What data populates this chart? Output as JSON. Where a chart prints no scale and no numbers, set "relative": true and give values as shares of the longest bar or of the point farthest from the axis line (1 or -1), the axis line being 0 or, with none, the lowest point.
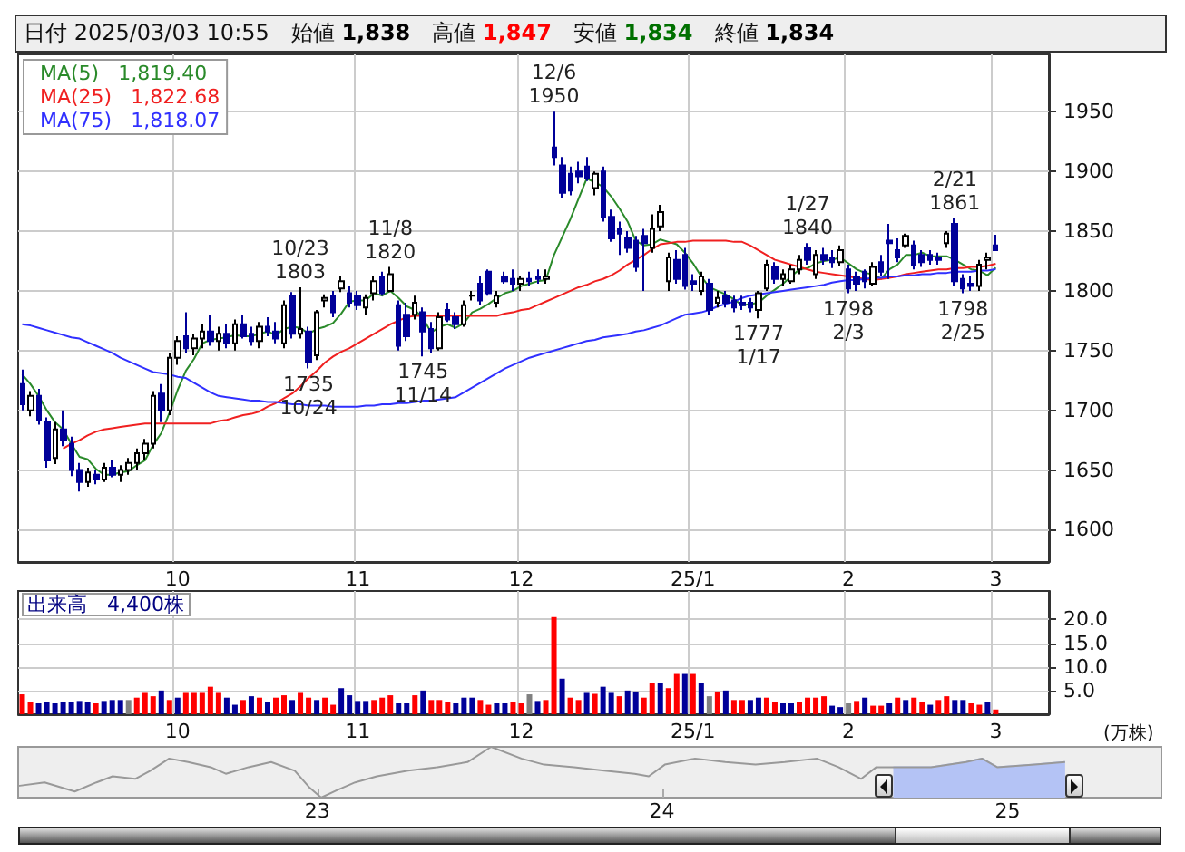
{
  "chart_data": [
    {
      "type": "candlestick",
      "title": "日付 2025/03/03 10:55",
      "annotations": [
        "始値 1,838",
        "高値 1,847",
        "安値 1,834",
        "終値 1,834",
        {
          "text": "10/23\n1803",
          "y": 1803
        },
        {
          "text": "1735\n10/24",
          "y": 1735
        },
        {
          "text": "11/8\n1820",
          "y": 1820
        },
        {
          "text": "1745\n11/14",
          "y": 1745
        },
        {
          "text": "12/6\n1950",
          "y": 1950
        },
        {
          "text": "1777\n1/17",
          "y": 1777
        },
        {
          "text": "1/27\n1840",
          "y": 1840
        },
        {
          "text": "1798\n2/3",
          "y": 1798
        },
        {
          "text": "2/21\n1861",
          "y": 1861
        },
        {
          "text": "1798\n2/25",
          "y": 1798
        }
      ],
      "categories": [
        null,
        null,
        null,
        null,
        null,
        null,
        null,
        null,
        null,
        null,
        null,
        null,
        null,
        null,
        null,
        null,
        null,
        null,
        null,
        "10",
        null,
        null,
        null,
        null,
        null,
        null,
        null,
        null,
        null,
        null,
        null,
        null,
        null,
        null,
        null,
        null,
        null,
        null,
        null,
        null,
        null,
        "11",
        null,
        null,
        null,
        null,
        null,
        null,
        null,
        null,
        null,
        null,
        null,
        null,
        null,
        null,
        null,
        null,
        null,
        null,
        null,
        "12",
        null,
        null,
        null,
        null,
        null,
        null,
        null,
        null,
        null,
        null,
        null,
        null,
        null,
        null,
        null,
        null,
        null,
        null,
        null,
        null,
        "25/1",
        null,
        null,
        null,
        null,
        null,
        null,
        null,
        null,
        null,
        null,
        null,
        null,
        null,
        null,
        null,
        null,
        null,
        null,
        "2",
        null,
        null,
        null,
        null,
        null,
        null,
        null,
        null,
        null,
        null,
        null,
        null,
        null,
        null,
        null,
        null,
        null,
        "3"
      ],
      "ohlc": [
        [
          1722,
          1734,
          1700,
          1705
        ],
        [
          1700,
          1716,
          1695,
          1712
        ],
        [
          1712,
          1718,
          1688,
          1692
        ],
        [
          1690,
          1694,
          1652,
          1658
        ],
        [
          1660,
          1690,
          1655,
          1684
        ],
        [
          1684,
          1700,
          1670,
          1675
        ],
        [
          1672,
          1678,
          1645,
          1650
        ],
        [
          1650,
          1656,
          1632,
          1640
        ],
        [
          1640,
          1652,
          1636,
          1648
        ],
        [
          1646,
          1650,
          1638,
          1642
        ],
        [
          1642,
          1656,
          1640,
          1652
        ],
        [
          1652,
          1658,
          1644,
          1646
        ],
        [
          1646,
          1654,
          1640,
          1650
        ],
        [
          1650,
          1660,
          1646,
          1656
        ],
        [
          1656,
          1668,
          1650,
          1664
        ],
        [
          1664,
          1676,
          1658,
          1672
        ],
        [
          1672,
          1716,
          1668,
          1712
        ],
        [
          1714,
          1722,
          1690,
          1700
        ],
        [
          1700,
          1748,
          1696,
          1744
        ],
        [
          1744,
          1762,
          1738,
          1758
        ],
        [
          1762,
          1782,
          1748,
          1752
        ],
        [
          1752,
          1764,
          1746,
          1760
        ],
        [
          1760,
          1772,
          1752,
          1766
        ],
        [
          1766,
          1780,
          1754,
          1758
        ],
        [
          1758,
          1770,
          1750,
          1764
        ],
        [
          1764,
          1772,
          1752,
          1756
        ],
        [
          1756,
          1776,
          1750,
          1772
        ],
        [
          1772,
          1780,
          1760,
          1762
        ],
        [
          1764,
          1770,
          1754,
          1758
        ],
        [
          1758,
          1774,
          1752,
          1770
        ],
        [
          1770,
          1778,
          1762,
          1766
        ],
        [
          1766,
          1774,
          1756,
          1760
        ],
        [
          1756,
          1792,
          1752,
          1788
        ],
        [
          1796,
          1799,
          1760,
          1764
        ],
        [
          1764,
          1803,
          1760,
          1768
        ],
        [
          1766,
          1770,
          1735,
          1740
        ],
        [
          1746,
          1784,
          1742,
          1782
        ],
        [
          1792,
          1797,
          1786,
          1794
        ],
        [
          1796,
          1800,
          1778,
          1782
        ],
        [
          1802,
          1812,
          1799,
          1808
        ],
        [
          1798,
          1804,
          1786,
          1790
        ],
        [
          1796,
          1800,
          1784,
          1788
        ],
        [
          1786,
          1797,
          1780,
          1794
        ],
        [
          1798,
          1812,
          1792,
          1808
        ],
        [
          1812,
          1816,
          1796,
          1798
        ],
        [
          1800,
          1820,
          1799,
          1814
        ],
        [
          1788,
          1792,
          1750,
          1754
        ],
        [
          1780,
          1790,
          1758,
          1762
        ],
        [
          1780,
          1796,
          1776,
          1790
        ],
        [
          1782,
          1786,
          1745,
          1766
        ],
        [
          1768,
          1774,
          1748,
          1752
        ],
        [
          1752,
          1782,
          1750,
          1778
        ],
        [
          1784,
          1790,
          1774,
          1776
        ],
        [
          1778,
          1782,
          1768,
          1772
        ],
        [
          1772,
          1792,
          1770,
          1788
        ],
        [
          1796,
          1800,
          1792,
          1796
        ],
        [
          1806,
          1812,
          1788,
          1792
        ],
        [
          1816,
          1818,
          1796,
          1798
        ],
        [
          1790,
          1800,
          1786,
          1796
        ],
        [
          1812,
          1816,
          1806,
          1808
        ],
        [
          1810,
          1818,
          1800,
          1806
        ],
        [
          1806,
          1812,
          1800,
          1810
        ],
        [
          1810,
          1816,
          1804,
          1808
        ],
        [
          1812,
          1818,
          1806,
          1810
        ],
        [
          1810,
          1818,
          1806,
          1812
        ],
        [
          1920,
          1950,
          1905,
          1912
        ],
        [
          1905,
          1912,
          1878,
          1882
        ],
        [
          1898,
          1904,
          1880,
          1884
        ],
        [
          1900,
          1908,
          1890,
          1896
        ],
        [
          1904,
          1912,
          1892,
          1894
        ],
        [
          1886,
          1900,
          1880,
          1898
        ],
        [
          1900,
          1904,
          1858,
          1862
        ],
        [
          1862,
          1868,
          1841,
          1844
        ],
        [
          1852,
          1858,
          1830,
          1848
        ],
        [
          1844,
          1850,
          1832,
          1836
        ],
        [
          1842,
          1846,
          1816,
          1820
        ],
        [
          1846,
          1852,
          1800,
          1840
        ],
        [
          1836,
          1864,
          1832,
          1852
        ],
        [
          1854,
          1872,
          1850,
          1866
        ],
        [
          1808,
          1832,
          1800,
          1828
        ],
        [
          1826,
          1834,
          1806,
          1810
        ],
        [
          1830,
          1836,
          1801,
          1804
        ],
        [
          1808,
          1814,
          1800,
          1806
        ],
        [
          1800,
          1816,
          1796,
          1812
        ],
        [
          1806,
          1810,
          1780,
          1784
        ],
        [
          1790,
          1800,
          1786,
          1794
        ],
        [
          1796,
          1800,
          1786,
          1790
        ],
        [
          1792,
          1796,
          1782,
          1786
        ],
        [
          1790,
          1796,
          1784,
          1788
        ],
        [
          1790,
          1794,
          1782,
          1786
        ],
        [
          1784,
          1800,
          1777,
          1798
        ],
        [
          1802,
          1826,
          1800,
          1822
        ],
        [
          1820,
          1824,
          1806,
          1810
        ],
        [
          1810,
          1818,
          1804,
          1814
        ],
        [
          1808,
          1822,
          1806,
          1818
        ],
        [
          1818,
          1830,
          1814,
          1826
        ],
        [
          1836,
          1840,
          1822,
          1826
        ],
        [
          1814,
          1834,
          1810,
          1830
        ],
        [
          1830,
          1836,
          1822,
          1826
        ],
        [
          1828,
          1834,
          1819,
          1824
        ],
        [
          1824,
          1838,
          1821,
          1834
        ],
        [
          1818,
          1822,
          1798,
          1802
        ],
        [
          1812,
          1816,
          1800,
          1806
        ],
        [
          1816,
          1818,
          1802,
          1808
        ],
        [
          1806,
          1824,
          1804,
          1820
        ],
        [
          1824,
          1830,
          1812,
          1816
        ],
        [
          1842,
          1856,
          1810,
          1840
        ],
        [
          1834,
          1844,
          1824,
          1828
        ],
        [
          1838,
          1848,
          1836,
          1846
        ],
        [
          1838,
          1842,
          1818,
          1822
        ],
        [
          1830,
          1834,
          1820,
          1824
        ],
        [
          1830,
          1834,
          1822,
          1826
        ],
        [
          1828,
          1832,
          1822,
          1826
        ],
        [
          1840,
          1850,
          1836,
          1848
        ],
        [
          1856,
          1861,
          1804,
          1808
        ],
        [
          1810,
          1814,
          1798,
          1802
        ],
        [
          1806,
          1812,
          1800,
          1804
        ],
        [
          1804,
          1826,
          1800,
          1822
        ],
        [
          1826,
          1832,
          1818,
          1828
        ],
        [
          1838,
          1847,
          1834,
          1834
        ]
      ],
      "series": [
        {
          "type": "line",
          "name": "MA(5)   1,819.40",
          "color": "#2a8a2a",
          "values": [
            1730,
            1722,
            1712,
            1700,
            1690,
            1684,
            1672,
            1661,
            1659,
            1651,
            1646,
            1646,
            1648,
            1649,
            1654,
            1658,
            1671,
            1681,
            1698,
            1717,
            1733,
            1743,
            1756,
            1759,
            1760,
            1761,
            1763,
            1762,
            1762,
            1764,
            1766,
            1763,
            1768,
            1770,
            1769,
            1764,
            1768,
            1770,
            1773,
            1781,
            1791,
            1792,
            1792,
            1798,
            1796,
            1800,
            1794,
            1787,
            1784,
            1777,
            1765,
            1770,
            1772,
            1769,
            1773,
            1782,
            1785,
            1789,
            1794,
            1798,
            1800,
            1804,
            1806,
            1808,
            1809,
            1830,
            1845,
            1860,
            1877,
            1894,
            1891,
            1887,
            1879,
            1869,
            1858,
            1842,
            1838,
            1839,
            1843,
            1841,
            1839,
            1832,
            1823,
            1812,
            1803,
            1800,
            1797,
            1793,
            1788,
            1789,
            1790,
            1796,
            1801,
            1806,
            1812,
            1818,
            1819,
            1823,
            1825,
            1826,
            1828,
            1823,
            1818,
            1815,
            1814,
            1810,
            1818,
            1822,
            1830,
            1830,
            1832,
            1829,
            1829,
            1829,
            1826,
            1822,
            1818,
            1817,
            1813,
            1819.4
          ]
        },
        {
          "type": "line",
          "name": "MA(25)   1,822.68",
          "color": "#f02020",
          "values": [
            null,
            null,
            null,
            null,
            null,
            1668,
            1672,
            1675,
            1679,
            1682,
            1684,
            1685,
            1686,
            1687,
            1688,
            1689,
            1689,
            1689,
            1689,
            1689,
            1689,
            1689,
            1689,
            1689,
            1691,
            1692,
            1694,
            1696,
            1697,
            1699,
            1703,
            1706,
            1710,
            1714,
            1720,
            1727,
            1733,
            1740,
            1745,
            1749,
            1752,
            1756,
            1760,
            1764,
            1768,
            1772,
            1775,
            1778,
            1779,
            1779,
            1779,
            1779,
            1779,
            1779,
            1779,
            1779,
            1779,
            1779,
            1779,
            1781,
            1782,
            1784,
            1785,
            1788,
            1791,
            1794,
            1797,
            1800,
            1803,
            1805,
            1808,
            1810,
            1813,
            1817,
            1822,
            1826,
            1830,
            1835,
            1839,
            1840,
            1841,
            1841,
            1842,
            1842,
            1842,
            1842,
            1842,
            1841,
            1841,
            1838,
            1834,
            1830,
            1826,
            1824,
            1822,
            1820,
            1818,
            1816,
            1815,
            1814,
            1813,
            1812,
            1811,
            1810,
            1809,
            1810,
            1811,
            1812,
            1814,
            1815,
            1816,
            1817,
            1818,
            1818,
            1819,
            1819,
            1820,
            1820,
            1821,
            1822.68
          ]
        },
        {
          "type": "line",
          "name": "MA(75)   1,818.07",
          "color": "#3030ff",
          "values": [
            1772,
            1771,
            1769,
            1767,
            1765,
            1763,
            1761,
            1760,
            1757,
            1754,
            1751,
            1748,
            1744,
            1741,
            1738,
            1735,
            1732,
            1731,
            1730,
            1728,
            1727,
            1723,
            1719,
            1715,
            1712,
            1711,
            1710,
            1709,
            1708,
            1708,
            1707,
            1707,
            1706,
            1705,
            1705,
            1704,
            1704,
            1704,
            1703,
            1703,
            1703,
            1703,
            1704,
            1704,
            1705,
            1705,
            1706,
            1706,
            1707,
            1708,
            1708,
            1709,
            1710,
            1711,
            1715,
            1719,
            1723,
            1727,
            1731,
            1735,
            1738,
            1741,
            1744,
            1746,
            1748,
            1750,
            1752,
            1754,
            1756,
            1758,
            1759,
            1761,
            1762,
            1763,
            1764,
            1766,
            1767,
            1769,
            1771,
            1774,
            1777,
            1780,
            1781,
            1782,
            1784,
            1787,
            1789,
            1791,
            1794,
            1796,
            1797,
            1798,
            1799,
            1800,
            1801,
            1802,
            1803,
            1804,
            1805,
            1807,
            1808,
            1809,
            1809,
            1810,
            1811,
            1811,
            1812,
            1812,
            1813,
            1813,
            1814,
            1814,
            1815,
            1815,
            1816,
            1816,
            1816,
            1817,
            1817,
            1818.07
          ]
        }
      ],
      "ylim": [
        1573,
        1998
      ],
      "yticks": [
        1600,
        1650,
        1700,
        1750,
        1800,
        1850,
        1900,
        1950
      ],
      "grid": true,
      "legend": "top left"
    },
    {
      "type": "bar",
      "title": "出来高　4,400株",
      "ylabel": "(万株)",
      "categories": [
        null,
        null,
        null,
        null,
        null,
        null,
        null,
        null,
        null,
        null,
        null,
        null,
        null,
        null,
        null,
        null,
        null,
        null,
        null,
        "10",
        null,
        null,
        null,
        null,
        null,
        null,
        null,
        null,
        null,
        null,
        null,
        null,
        null,
        null,
        null,
        null,
        null,
        null,
        null,
        null,
        null,
        "11",
        null,
        null,
        null,
        null,
        null,
        null,
        null,
        null,
        null,
        null,
        null,
        null,
        null,
        null,
        null,
        null,
        null,
        null,
        null,
        "12",
        null,
        null,
        null,
        null,
        null,
        null,
        null,
        null,
        null,
        null,
        null,
        null,
        null,
        null,
        null,
        null,
        null,
        null,
        null,
        null,
        "25/1",
        null,
        null,
        null,
        null,
        null,
        null,
        null,
        null,
        null,
        null,
        null,
        null,
        null,
        null,
        null,
        null,
        null,
        null,
        "2",
        null,
        null,
        null,
        null,
        null,
        null,
        null,
        null,
        null,
        null,
        null,
        null,
        null,
        null,
        null,
        null,
        null,
        "3"
      ],
      "values": [
        4.2,
        2.5,
        2.3,
        2.5,
        2.3,
        2.5,
        2.5,
        2.8,
        2.5,
        2.3,
        2.8,
        3.0,
        3.0,
        3.0,
        3.5,
        4.5,
        3.8,
        5.0,
        3.0,
        3.5,
        4.5,
        4.5,
        4.5,
        5.8,
        4.5,
        3.5,
        2.0,
        3.0,
        3.8,
        3.5,
        2.5,
        3.5,
        4.0,
        3.0,
        4.5,
        3.5,
        3.0,
        3.5,
        2.0,
        5.5,
        4.0,
        2.8,
        2.8,
        3.0,
        3.5,
        4.0,
        2.3,
        2.3,
        4.0,
        5.0,
        3.0,
        3.0,
        2.5,
        2.3,
        3.5,
        3.5,
        3.0,
        2.0,
        2.3,
        2.3,
        2.5,
        2.3,
        4.2,
        2.8,
        3.0,
        20.5,
        7.5,
        3.5,
        3.0,
        4.5,
        4.3,
        5.8,
        4.5,
        3.8,
        5.0,
        4.8,
        3.5,
        6.5,
        6.5,
        5.5,
        8.5,
        8.5,
        8.5,
        6.5,
        3.8,
        4.8,
        5.0,
        3.0,
        3.0,
        3.0,
        3.5,
        3.5,
        2.5,
        2.3,
        2.3,
        2.5,
        3.5,
        3.5,
        3.8,
        1.8,
        1.5,
        2.3,
        2.8,
        3.5,
        1.8,
        1.8,
        2.3,
        3.5,
        3.0,
        3.5,
        2.5,
        2.0,
        3.0,
        3.8,
        3.0,
        3.0,
        2.3,
        2.0,
        2.5,
        1.0
      ],
      "colors": [
        "#ff0000",
        "#ff0000",
        "#000099",
        "#000099",
        "#000099",
        "#000099",
        "#000099",
        "#000099",
        "#000099",
        "#ff0000",
        "#000099",
        "#000099",
        "#000099",
        "#808080",
        "#ff0000",
        "#ff0000",
        "#ff0000",
        "#000099",
        "#ff0000",
        "#000099",
        "#ff0000",
        "#ff0000",
        "#ff0000",
        "#ff0000",
        "#ff0000",
        "#000099",
        "#000099",
        "#ff0000",
        "#000099",
        "#ff0000",
        "#000099",
        "#ff0000",
        "#ff0000",
        "#000099",
        "#ff0000",
        "#ff0000",
        "#000099",
        "#ff0000",
        "#ff0000",
        "#000099",
        "#000099",
        "#000099",
        "#000099",
        "#ff0000",
        "#ff0000",
        "#ff0000",
        "#000099",
        "#000099",
        "#ff0000",
        "#000099",
        "#ff0000",
        "#ff0000",
        "#ff0000",
        "#000099",
        "#000099",
        "#000099",
        "#ff0000",
        "#ff0000",
        "#000099",
        "#000099",
        "#ff0000",
        "#ff0000",
        "#808080",
        "#000099",
        "#ff0000",
        "#ff0000",
        "#000099",
        "#ff0000",
        "#ff0000",
        "#000099",
        "#ff0000",
        "#000099",
        "#000099",
        "#ff0000",
        "#000099",
        "#000099",
        "#ff0000",
        "#ff0000",
        "#000099",
        "#ff0000",
        "#ff0000",
        "#000099",
        "#ff0000",
        "#000099",
        "#808080",
        "#ff0000",
        "#000099",
        "#ff0000",
        "#ff0000",
        "#000099",
        "#000099",
        "#ff0000",
        "#ff0000",
        "#000099",
        "#000099",
        "#ff0000",
        "#ff0000",
        "#ff0000",
        "#ff0000",
        "#000099",
        "#000099",
        "#808080",
        "#ff0000",
        "#000099",
        "#ff0000",
        "#ff0000",
        "#000099",
        "#ff0000",
        "#000099",
        "#ff0000",
        "#ff0000",
        "#000099",
        "#ff0000",
        "#ff0000",
        "#000099",
        "#000099",
        "#ff0000",
        "#ff0000",
        "#000099",
        "#ff0000"
      ],
      "ylim": [
        0,
        26
      ],
      "yticks": [
        {
          "value": 5,
          "label": "5.0"
        },
        {
          "value": 10,
          "label": "10.0"
        },
        {
          "value": 15,
          "label": "15.0"
        },
        {
          "value": 20,
          "label": "20.0"
        }
      ],
      "grid": true
    },
    {
      "type": "line",
      "relative": true,
      "xlim": [
        "2022-02-18",
        "2025-06-13"
      ],
      "xticks": [
        {
          "value": "2023-01-01",
          "label": "23"
        },
        {
          "value": "2024-01-01",
          "label": "24"
        },
        {
          "value": "2025-01-01",
          "label": "25"
        }
      ],
      "series": [
        {
          "type": "area",
          "color": "#b4c3f5",
          "x": [
            "2024-09-02",
            "2024-10-12",
            "2024-11-18",
            "2024-12-05",
            "2024-12-21",
            "2025-01-30",
            "2025-03-03"
          ],
          "values": [
            0.6,
            0.6,
            0.7,
            0.77,
            0.6,
            0.65,
            0.7
          ]
        },
        {
          "type": "line",
          "color": "#999999",
          "x": [
            "2022-02-18",
            "2022-03-18",
            "2022-04-19",
            "2022-05-12",
            "2022-05-29",
            "2022-06-22",
            "2022-07-08",
            "2022-07-28",
            "2022-08-17",
            "2022-09-10",
            "2022-09-26",
            "2022-10-20",
            "2022-11-13",
            "2022-12-08",
            "2022-12-24",
            "2023-01-05",
            "2023-01-21",
            "2023-02-10",
            "2023-03-05",
            "2023-04-07",
            "2023-05-08",
            "2023-06-09",
            "2023-07-04",
            "2023-08-05",
            "2023-08-29",
            "2023-09-30",
            "2023-11-01",
            "2023-12-03",
            "2023-12-18",
            "2024-01-04",
            "2024-02-05",
            "2024-03-08",
            "2024-04-09",
            "2024-05-10",
            "2024-06-13",
            "2024-07-06",
            "2024-07-30",
            "2024-08-15",
            "2024-09-02",
            "2024-10-12",
            "2024-11-18",
            "2024-12-05",
            "2024-12-21",
            "2025-01-30",
            "2025-03-03"
          ],
          "values": [
            0.23,
            0.3,
            0.12,
            0.3,
            0.42,
            0.37,
            0.53,
            0.77,
            0.7,
            0.6,
            0.47,
            0.6,
            0.7,
            0.53,
            0.19,
            0,
            0.14,
            0.3,
            0.42,
            0.53,
            0.6,
            0.7,
            1,
            0.77,
            0.65,
            0.6,
            0.53,
            0.47,
            0.42,
            0.65,
            0.77,
            0.7,
            0.65,
            0.7,
            0.77,
            0.6,
            0.37,
            0.6,
            0.6,
            0.6,
            0.7,
            0.77,
            0.6,
            0.65,
            0.7
          ]
        }
      ]
    }
  ]
}
